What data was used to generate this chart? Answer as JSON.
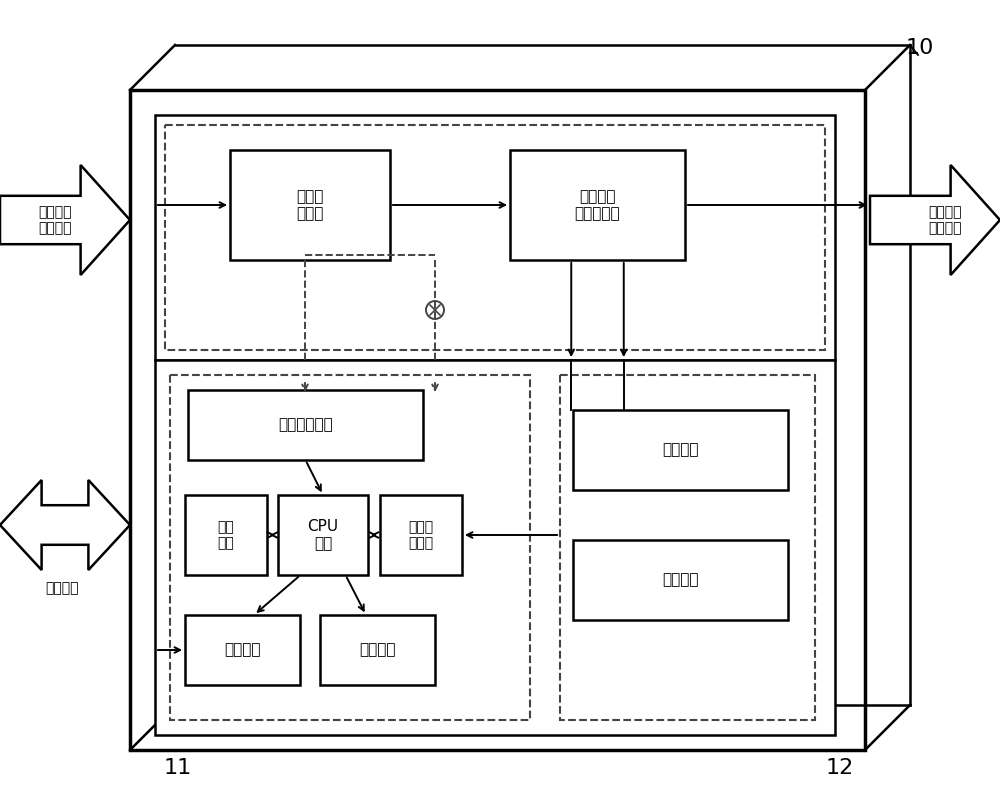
{
  "fig_width": 10.0,
  "fig_height": 8.01,
  "bg_color": "#ffffff",
  "label_10": "10",
  "label_11": "11",
  "label_12": "12",
  "text_color": "#000000",
  "line_color": "#000000"
}
